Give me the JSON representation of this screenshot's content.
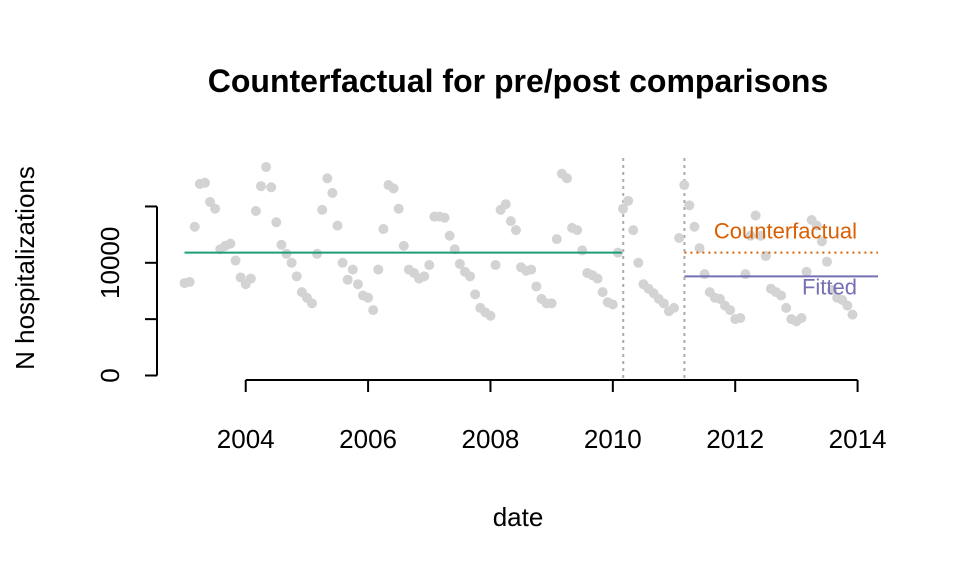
{
  "chart_data": {
    "type": "scatter",
    "title": "Counterfactual for pre/post comparisons",
    "xlabel": "date",
    "ylabel": "N hospitalizations",
    "xlim": [
      2002.55,
      2014.35
    ],
    "ylim": [
      -400,
      19300
    ],
    "x_ticks": [
      2004,
      2006,
      2008,
      2010,
      2012,
      2014
    ],
    "y_ticks": [
      0,
      5000,
      10000,
      15000
    ],
    "y_tick_labels": [
      "0",
      "",
      "10000",
      ""
    ],
    "point_color": "#d3d3d3",
    "points": {
      "start_year": 2003,
      "step_months": 1,
      "values": [
        8200,
        8300,
        13200,
        17000,
        17100,
        15400,
        14800,
        11200,
        11500,
        11700,
        10200,
        8700,
        8100,
        8600,
        14600,
        16800,
        18500,
        16700,
        13600,
        11600,
        10800,
        10000,
        8800,
        7400,
        6900,
        6400,
        10800,
        14700,
        17500,
        16200,
        13300,
        10000,
        8500,
        9400,
        8100,
        7100,
        6900,
        5800,
        9400,
        13000,
        16900,
        16600,
        14800,
        11500,
        9400,
        9100,
        8600,
        8800,
        9800,
        14100,
        14100,
        14000,
        12400,
        11200,
        9900,
        9200,
        8800,
        7200,
        6000,
        5600,
        5300,
        9800,
        14700,
        15200,
        13700,
        12900,
        9600,
        9300,
        9400,
        7900,
        6800,
        6400,
        6400,
        12100,
        17900,
        17500,
        13100,
        12900,
        11100,
        9100,
        8900,
        8600,
        7400,
        6500,
        6300,
        10900,
        14800,
        15500,
        12900,
        10000,
        8100,
        7700,
        7300,
        6800,
        6400,
        5700,
        6000,
        12200,
        16900,
        15100,
        13200,
        11300,
        9000,
        7400,
        6900,
        6800,
        6200,
        5800,
        5000,
        5100,
        9000,
        12400,
        14200,
        12400,
        10600,
        7700,
        7400,
        7100,
        6000,
        5000,
        4800,
        5100,
        9200,
        13800,
        13300,
        11900,
        10100,
        7600,
        6900,
        6700,
        6200,
        5400
      ]
    },
    "pre_period_fit": {
      "x": [
        2003,
        2010.15
      ],
      "y": 10900,
      "color": "#1b9e77"
    },
    "intervention_start": 2010.17,
    "intervention_end": 2011.17,
    "post_fitted": {
      "x": [
        2011.17,
        2014.4
      ],
      "y": 8800,
      "color": "#7570b3",
      "label": "Fitted"
    },
    "post_counterfactual": {
      "x": [
        2011.17,
        2014.4
      ],
      "y": 10900,
      "color": "#d95f02",
      "label": "Counterfactual"
    }
  }
}
